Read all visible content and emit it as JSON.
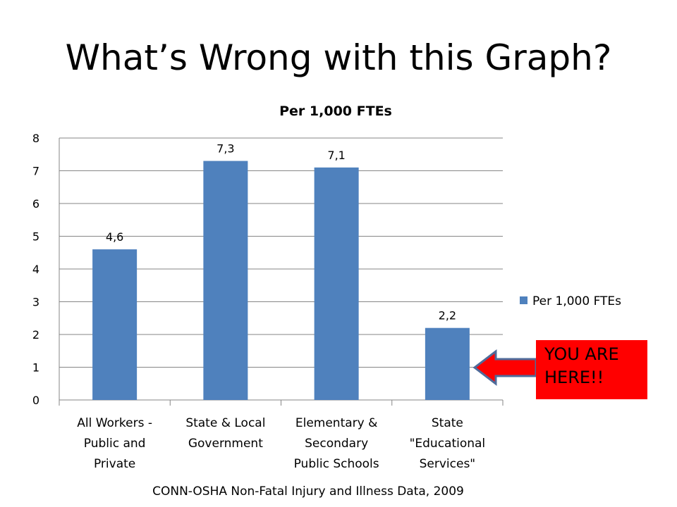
{
  "slide": {
    "title": "What’s Wrong with this Graph?",
    "source": "CONN-OSHA Non-Fatal Injury and Illness Data, 2009",
    "callout": "YOU ARE HERE!!"
  },
  "colors": {
    "bar": "#4f81bd",
    "callout": "#ff0000",
    "arrow_fill": "#ff0000",
    "arrow_stroke": "#4f6b9a",
    "grid": "#868686"
  },
  "chart_data": {
    "type": "bar",
    "title": "Per 1,000 FTEs",
    "categories": [
      [
        "All Workers -",
        "Public and",
        "Private"
      ],
      [
        "State & Local",
        "Government"
      ],
      [
        "Elementary &",
        "Secondary",
        "Public Schools"
      ],
      [
        "State",
        "\"Educational",
        "Services\""
      ]
    ],
    "series": [
      {
        "name": "Per 1,000 FTEs",
        "values": [
          4.6,
          7.3,
          7.1,
          2.2
        ],
        "labels": [
          "4,6",
          "7,3",
          "7,1",
          "2,2"
        ]
      }
    ],
    "ylim": [
      0,
      8
    ],
    "yticks": [
      "0",
      "1",
      "2",
      "3",
      "4",
      "5",
      "6",
      "7",
      "8"
    ],
    "grid": true,
    "legend": "right"
  }
}
